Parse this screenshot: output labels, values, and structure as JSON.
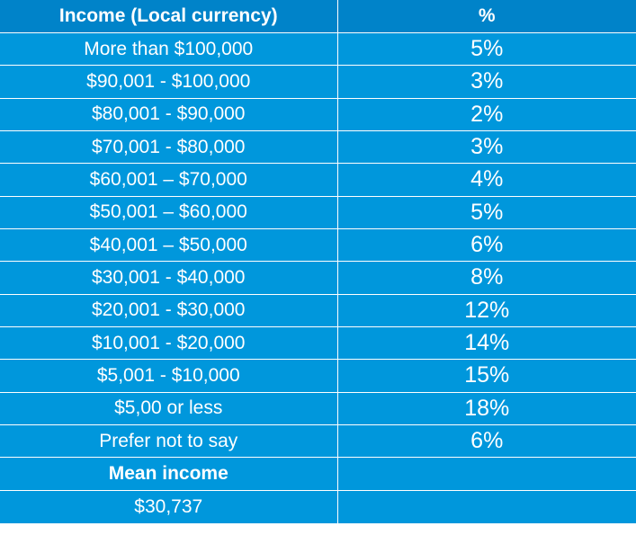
{
  "chart_data": {
    "type": "table",
    "columns": [
      "Income (Local currency)",
      "%"
    ],
    "rows": [
      {
        "range": "More than $100,000",
        "pct": "5%",
        "value": 5
      },
      {
        "range": "$90,001 - $100,000",
        "pct": "3%",
        "value": 3
      },
      {
        "range": "$80,001 - $90,000",
        "pct": "2%",
        "value": 2
      },
      {
        "range": "$70,001 - $80,000",
        "pct": "3%",
        "value": 3
      },
      {
        "range": "$60,001 – $70,000",
        "pct": "4%",
        "value": 4
      },
      {
        "range": "$50,001 – $60,000",
        "pct": "5%",
        "value": 5
      },
      {
        "range": "$40,001 – $50,000",
        "pct": "6%",
        "value": 6
      },
      {
        "range": "$30,001 - $40,000",
        "pct": "8%",
        "value": 8
      },
      {
        "range": "$20,001 - $30,000",
        "pct": "12%",
        "value": 12
      },
      {
        "range": "$10,001 - $20,000",
        "pct": "14%",
        "value": 14
      },
      {
        "range": "$5,001 - $10,000",
        "pct": "15%",
        "value": 15
      },
      {
        "range": "$5,00 or less",
        "pct": "18%",
        "value": 18
      },
      {
        "range": "Prefer not to say",
        "pct": "6%",
        "value": 6
      }
    ],
    "summary": {
      "label": "Mean income",
      "value": "$30,737"
    }
  },
  "colors": {
    "header_bg": "#0083c9",
    "cell_bg": "#0097dc",
    "text": "#ffffff",
    "border": "#ffffff"
  }
}
